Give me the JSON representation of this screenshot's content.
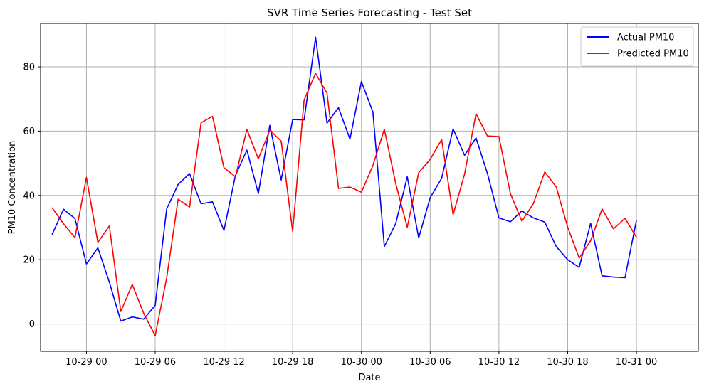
{
  "chart_data": {
    "type": "line",
    "title": "SVR Time Series Forecasting - Test Set",
    "xlabel": "Date",
    "ylabel": "PM10 Concentration",
    "x_start": "10-28 21:00",
    "x_step_hours": 1,
    "xlim_hours": [
      -4.0,
      53.4
    ],
    "ylim": [
      -8.5,
      93.5
    ],
    "x_ticks": [
      {
        "label": "10-29 00",
        "hour": 0
      },
      {
        "label": "10-29 06",
        "hour": 6
      },
      {
        "label": "10-29 12",
        "hour": 12
      },
      {
        "label": "10-29 18",
        "hour": 18
      },
      {
        "label": "10-30 00",
        "hour": 24
      },
      {
        "label": "10-30 06",
        "hour": 30
      },
      {
        "label": "10-30 12",
        "hour": 36
      },
      {
        "label": "10-30 18",
        "hour": 42
      },
      {
        "label": "10-31 00",
        "hour": 48
      }
    ],
    "y_ticks": [
      0,
      20,
      40,
      60,
      80
    ],
    "grid": true,
    "legend_position": "top-right",
    "series": [
      {
        "name": "Actual PM10",
        "color": "#0000ff",
        "values": [
          27.8,
          35.7,
          32.8,
          18.7,
          23.7,
          13.0,
          0.9,
          2.2,
          1.5,
          5.8,
          35.8,
          43.4,
          46.8,
          37.4,
          38.0,
          29.1,
          46.2,
          54.1,
          40.6,
          61.8,
          44.8,
          63.6,
          63.5,
          89.2,
          62.5,
          67.3,
          57.5,
          75.4,
          66.0,
          24.1,
          31.3,
          45.8,
          26.8,
          39.3,
          45.3,
          60.7,
          52.5,
          57.9,
          46.8,
          33.0,
          31.8,
          35.2,
          33.0,
          31.7,
          24.1,
          20.0,
          17.6,
          31.3,
          15.0,
          14.6,
          14.4,
          32.3
        ]
      },
      {
        "name": "Predicted PM10",
        "color": "#ff0000",
        "values": [
          36.2,
          31.2,
          26.9,
          45.6,
          25.4,
          30.5,
          3.9,
          12.3,
          3.3,
          -3.6,
          14.3,
          38.8,
          36.4,
          62.6,
          64.6,
          48.6,
          45.8,
          60.5,
          51.4,
          60.3,
          56.9,
          28.8,
          69.7,
          78.0,
          71.8,
          42.2,
          42.6,
          41.0,
          49.3,
          60.6,
          43.6,
          30.1,
          47.1,
          51.2,
          57.4,
          34.0,
          46.6,
          65.4,
          58.5,
          58.3,
          40.6,
          32.0,
          37.4,
          47.3,
          42.6,
          30.1,
          20.5,
          25.9,
          35.8,
          29.6,
          32.9,
          27.0
        ]
      }
    ]
  }
}
